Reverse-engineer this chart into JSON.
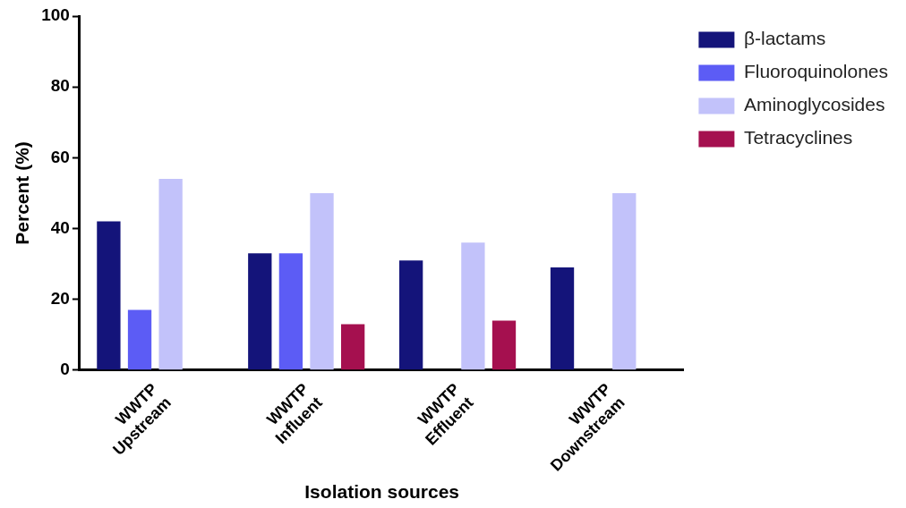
{
  "chart_data": {
    "type": "bar",
    "xlabel": "Isolation sources",
    "ylabel": "Percent (%)",
    "categories": [
      "WWTP Upstream",
      "WWTP Influent",
      "WWTP Effluent",
      "WWTP Downstream"
    ],
    "series": [
      {
        "name": "β-lactams",
        "color": "#14147a",
        "values": [
          42,
          33,
          31,
          29
        ]
      },
      {
        "name": "Fluoroquinolones",
        "color": "#5c5cf5",
        "values": [
          17,
          33,
          0,
          0
        ]
      },
      {
        "name": "Aminoglycosides",
        "color": "#c2c2fa",
        "values": [
          54,
          50,
          36,
          50
        ]
      },
      {
        "name": "Tetracyclines",
        "color": "#a5104f",
        "values": [
          0,
          13,
          14,
          0
        ]
      }
    ],
    "ylim": [
      0,
      100
    ],
    "yticks": [
      0,
      20,
      40,
      60,
      80,
      100
    ],
    "grid": false,
    "legend": "top right"
  }
}
